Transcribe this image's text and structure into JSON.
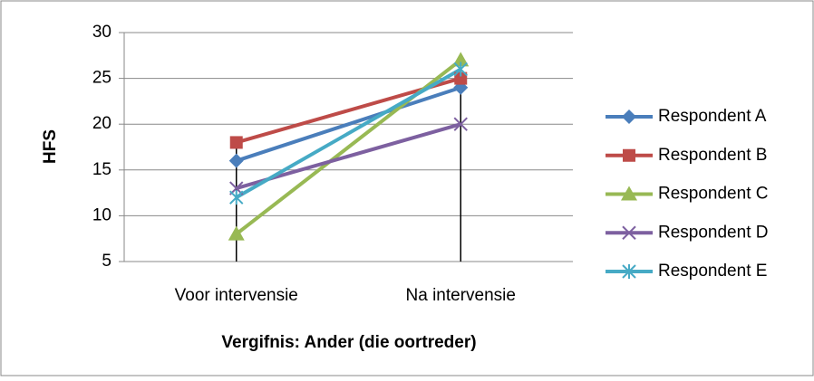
{
  "chart_data": {
    "type": "line",
    "xlabel": "Vergifnis: Ander (die oortreder)",
    "ylabel": "HFS",
    "categories": [
      "Voor intervensie",
      "Na intervensie"
    ],
    "series": [
      {
        "name": "Respondent A",
        "color": "#4a7ebb",
        "marker": "diamond",
        "values": [
          16,
          24
        ]
      },
      {
        "name": "Respondent B",
        "color": "#be4b48",
        "marker": "square",
        "values": [
          18,
          25
        ]
      },
      {
        "name": "Respondent C",
        "color": "#98b954",
        "marker": "triangle",
        "values": [
          8,
          27
        ]
      },
      {
        "name": "Respondent D",
        "color": "#7d60a0",
        "marker": "x",
        "values": [
          13,
          20
        ]
      },
      {
        "name": "Respondent E",
        "color": "#46aac5",
        "marker": "star",
        "values": [
          12,
          26
        ]
      }
    ],
    "ylim": [
      5,
      30
    ],
    "yticks": [
      5,
      10,
      15,
      20,
      25,
      30
    ],
    "grid": true,
    "legend": "right"
  }
}
